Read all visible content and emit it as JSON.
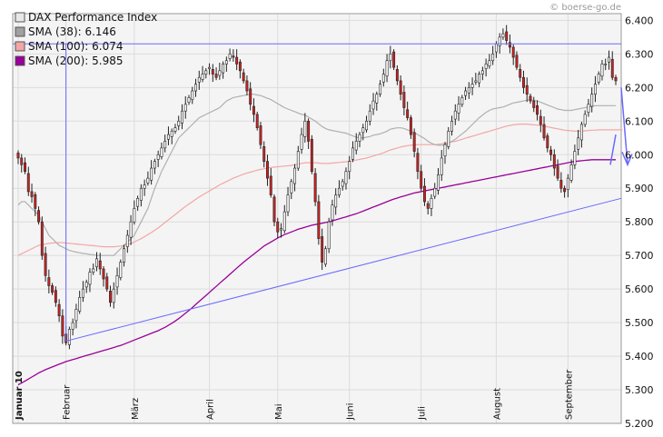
{
  "watermark": "© boerse-go.de",
  "legend": [
    {
      "label": "DAX Performance Index",
      "color": "#e8e8e8"
    },
    {
      "label": "SMA (38): 6.146",
      "color": "#a0a0a0"
    },
    {
      "label": "SMA (100): 6.074",
      "color": "#f4a6a6"
    },
    {
      "label": "SMA (200): 5.985",
      "color": "#990099"
    }
  ],
  "chart_data": {
    "type": "candlestick",
    "title": "DAX Performance Index",
    "ylim": [
      5200,
      6420
    ],
    "y_ticks": [
      "5.200",
      "5.300",
      "5.400",
      "5.500",
      "5.600",
      "5.700",
      "5.800",
      "5.900",
      "6.000",
      "6.100",
      "6.200",
      "6.300",
      "6.400"
    ],
    "x_labels": [
      {
        "label": "Januar 10",
        "bold": true,
        "index": 0
      },
      {
        "label": "Februar",
        "bold": false,
        "index": 14
      },
      {
        "label": "März",
        "bold": false,
        "index": 34
      },
      {
        "label": "April",
        "bold": false,
        "index": 56
      },
      {
        "label": "Mai",
        "bold": false,
        "index": 76
      },
      {
        "label": "Juni",
        "bold": false,
        "index": 97
      },
      {
        "label": "Juli",
        "bold": false,
        "index": 118
      },
      {
        "label": "August",
        "bold": false,
        "index": 140
      },
      {
        "label": "September",
        "bold": false,
        "index": 161
      }
    ],
    "colors": {
      "up": "#ffffff",
      "down": "#cc2222",
      "outline": "#222222",
      "sma38": "#b0b0b0",
      "sma100": "#f4a6a6",
      "sma200": "#990099",
      "trend": "#6a6aff"
    },
    "close": [
      5990,
      5970,
      5950,
      5890,
      5875,
      5840,
      5800,
      5700,
      5640,
      5610,
      5590,
      5560,
      5520,
      5460,
      5440,
      5480,
      5500,
      5540,
      5575,
      5600,
      5620,
      5650,
      5660,
      5690,
      5660,
      5630,
      5600,
      5560,
      5600,
      5640,
      5680,
      5720,
      5760,
      5800,
      5840,
      5870,
      5900,
      5910,
      5930,
      5960,
      5980,
      6000,
      6020,
      6040,
      6060,
      6070,
      6080,
      6100,
      6130,
      6150,
      6170,
      6190,
      6210,
      6230,
      6240,
      6250,
      6260,
      6240,
      6230,
      6250,
      6270,
      6280,
      6300,
      6290,
      6270,
      6250,
      6220,
      6190,
      6150,
      6120,
      6080,
      6030,
      5980,
      5930,
      5880,
      5800,
      5770,
      5780,
      5830,
      5880,
      5920,
      5960,
      6010,
      6060,
      6100,
      6040,
      5950,
      5860,
      5750,
      5680,
      5720,
      5800,
      5850,
      5880,
      5900,
      5920,
      5950,
      5980,
      6020,
      6040,
      6060,
      6080,
      6100,
      6130,
      6160,
      6180,
      6210,
      6240,
      6280,
      6300,
      6260,
      6220,
      6180,
      6140,
      6110,
      6060,
      6010,
      5950,
      5900,
      5860,
      5840,
      5870,
      5900,
      5940,
      5990,
      6030,
      6070,
      6100,
      6130,
      6150,
      6170,
      6190,
      6200,
      6210,
      6220,
      6240,
      6250,
      6270,
      6280,
      6300,
      6330,
      6350,
      6360,
      6340,
      6320,
      6290,
      6260,
      6230,
      6200,
      6180,
      6160,
      6140,
      6120,
      6090,
      6050,
      6020,
      6000,
      5960,
      5930,
      5900,
      5890,
      5930,
      5970,
      6010,
      6050,
      6090,
      6120,
      6150,
      6180,
      6210,
      6240,
      6270,
      6270,
      6290,
      6230,
      6220
    ],
    "sma38": [
      5850,
      5860,
      5860,
      5850,
      5840,
      5830,
      5820,
      5800,
      5780,
      5760,
      5750,
      5740,
      5730,
      5725,
      5720,
      5715,
      5712,
      5710,
      5708,
      5706,
      5705,
      5703,
      5702,
      5700,
      5700,
      5700,
      5700,
      5700,
      5700,
      5710,
      5720,
      5730,
      5740,
      5750,
      5760,
      5780,
      5800,
      5820,
      5840,
      5870,
      5900,
      5925,
      5950,
      5970,
      5990,
      6010,
      6030,
      6050,
      6060,
      6070,
      6080,
      6090,
      6100,
      6110,
      6115,
      6120,
      6125,
      6130,
      6135,
      6140,
      6150,
      6160,
      6165,
      6170,
      6172,
      6174,
      6176,
      6178,
      6180,
      6180,
      6178,
      6176,
      6172,
      6168,
      6164,
      6158,
      6152,
      6146,
      6140,
      6136,
      6132,
      6128,
      6124,
      6120,
      6118,
      6112,
      6106,
      6100,
      6092,
      6084,
      6078,
      6074,
      6072,
      6070,
      6068,
      6066,
      6064,
      6060,
      6056,
      6052,
      6050,
      6050,
      6052,
      6054,
      6058,
      6060,
      6062,
      6066,
      6070,
      6076,
      6078,
      6080,
      6080,
      6078,
      6074,
      6070,
      6066,
      6060,
      6054,
      6048,
      6040,
      6034,
      6030,
      6028,
      6028,
      6030,
      6034,
      6040,
      6046,
      6054,
      6062,
      6070,
      6080,
      6090,
      6100,
      6110,
      6118,
      6126,
      6132,
      6136,
      6138,
      6140,
      6142,
      6146,
      6150,
      6154,
      6156,
      6158,
      6160,
      6162,
      6164,
      6162,
      6160,
      6156,
      6152,
      6148,
      6144,
      6140,
      6136,
      6134,
      6132,
      6132,
      6132,
      6134,
      6136,
      6138,
      6140,
      6142,
      6144,
      6146,
      6146,
      6146,
      6146,
      6146,
      6146,
      6146
    ],
    "sma100": [
      5700,
      5705,
      5710,
      5715,
      5720,
      5725,
      5730,
      5732,
      5734,
      5736,
      5737,
      5738,
      5738,
      5738,
      5737,
      5736,
      5735,
      5734,
      5733,
      5732,
      5731,
      5730,
      5729,
      5728,
      5727,
      5726,
      5726,
      5726,
      5726,
      5727,
      5728,
      5730,
      5732,
      5735,
      5740,
      5745,
      5750,
      5756,
      5762,
      5768,
      5775,
      5782,
      5790,
      5798,
      5806,
      5814,
      5822,
      5830,
      5838,
      5846,
      5853,
      5860,
      5867,
      5874,
      5880,
      5886,
      5892,
      5898,
      5904,
      5910,
      5915,
      5920,
      5925,
      5930,
      5934,
      5938,
      5942,
      5945,
      5948,
      5951,
      5954,
      5956,
      5958,
      5960,
      5962,
      5963,
      5964,
      5965,
      5966,
      5967,
      5968,
      5970,
      5972,
      5974,
      5976,
      5976,
      5976,
      5976,
      5975,
      5974,
      5974,
      5974,
      5975,
      5976,
      5977,
      5978,
      5979,
      5980,
      5982,
      5984,
      5986,
      5988,
      5990,
      5993,
      5996,
      5999,
      6002,
      6006,
      6010,
      6014,
      6017,
      6020,
      6023,
      6025,
      6027,
      6028,
      6029,
      6030,
      6030,
      6030,
      6030,
      6030,
      6030,
      6031,
      6032,
      6034,
      6036,
      6038,
      6040,
      6043,
      6046,
      6049,
      6052,
      6055,
      6058,
      6061,
      6064,
      6067,
      6070,
      6073,
      6076,
      6079,
      6082,
      6085,
      6087,
      6089,
      6090,
      6091,
      6091,
      6091,
      6090,
      6089,
      6088,
      6087,
      6085,
      6083,
      6081,
      6079,
      6077,
      6075,
      6073,
      6072,
      6071,
      6070,
      6070,
      6070,
      6071,
      6072,
      6073,
      6073,
      6074,
      6074,
      6074,
      6074,
      6074,
      6074,
      6074,
      6074
    ],
    "sma200": [
      5315,
      5320,
      5326,
      5332,
      5338,
      5344,
      5350,
      5355,
      5360,
      5364,
      5368,
      5372,
      5376,
      5380,
      5384,
      5387,
      5390,
      5393,
      5396,
      5399,
      5402,
      5405,
      5408,
      5411,
      5414,
      5417,
      5420,
      5423,
      5426,
      5429,
      5432,
      5436,
      5440,
      5444,
      5448,
      5452,
      5456,
      5460,
      5464,
      5468,
      5472,
      5476,
      5481,
      5486,
      5492,
      5498,
      5505,
      5512,
      5520,
      5528,
      5536,
      5545,
      5554,
      5563,
      5572,
      5581,
      5590,
      5599,
      5608,
      5617,
      5626,
      5635,
      5644,
      5653,
      5662,
      5671,
      5680,
      5688,
      5696,
      5704,
      5712,
      5720,
      5728,
      5734,
      5740,
      5746,
      5752,
      5757,
      5762,
      5766,
      5770,
      5774,
      5778,
      5781,
      5784,
      5787,
      5790,
      5792,
      5794,
      5796,
      5798,
      5800,
      5803,
      5806,
      5809,
      5812,
      5815,
      5818,
      5821,
      5824,
      5828,
      5832,
      5836,
      5840,
      5844,
      5848,
      5852,
      5856,
      5860,
      5864,
      5868,
      5871,
      5874,
      5877,
      5880,
      5883,
      5886,
      5888,
      5890,
      5892,
      5894,
      5896,
      5898,
      5900,
      5902,
      5904,
      5906,
      5908,
      5910,
      5912,
      5914,
      5916,
      5918,
      5920,
      5922,
      5924,
      5926,
      5928,
      5930,
      5932,
      5934,
      5936,
      5938,
      5940,
      5942,
      5944,
      5946,
      5948,
      5950,
      5952,
      5954,
      5956,
      5958,
      5960,
      5962,
      5964,
      5966,
      5968,
      5970,
      5972,
      5974,
      5976,
      5978,
      5980,
      5981,
      5982,
      5983,
      5984,
      5985,
      5985,
      5985,
      5985,
      5985,
      5985,
      5985,
      5985
    ],
    "resistance_level": 6330,
    "trendline": {
      "from": {
        "index": 14,
        "value": 5445
      },
      "to": {
        "index": 175,
        "value": 5870
      }
    },
    "pointer_line": {
      "from": {
        "value": 6330
      },
      "to": {
        "value": 5445
      },
      "index": 14
    },
    "arrow_annotation": "down"
  }
}
